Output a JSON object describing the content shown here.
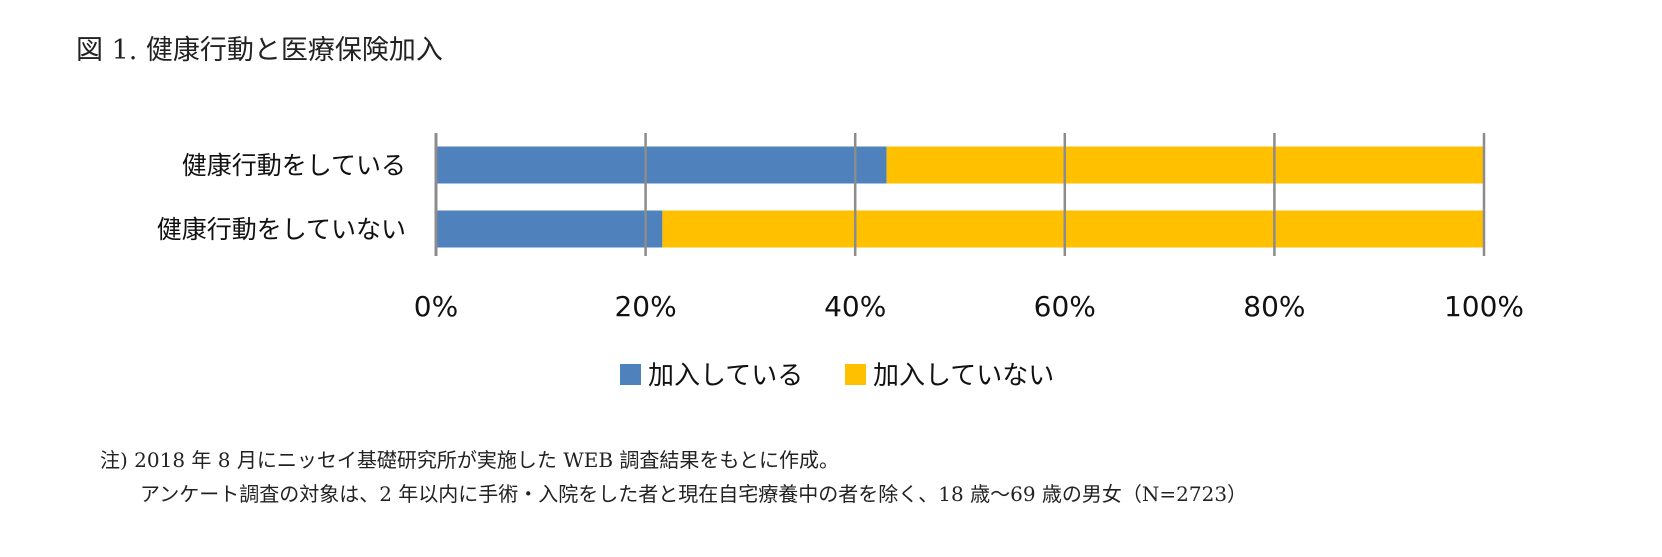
{
  "title": "図 1.  健康行動と医療保険加入",
  "chart_data": {
    "type": "bar",
    "orientation": "horizontal",
    "stacked": true,
    "percent": true,
    "categories": [
      "健康行動をしている",
      "健康行動をしていない"
    ],
    "series": [
      {
        "name": "加入している",
        "color": "#4f81bd",
        "values": [
          43,
          21.6
        ]
      },
      {
        "name": "加入していない",
        "color": "#ffc000",
        "values": [
          57,
          78.4
        ]
      }
    ],
    "xlim": [
      0,
      100
    ],
    "xticks": [
      "0%",
      "20%",
      "40%",
      "60%",
      "80%",
      "100%"
    ],
    "grid": true,
    "legend_position": "bottom"
  },
  "notes": {
    "line1": "注) 2018 年 8 月にニッセイ基礎研究所が実施した WEB 調査結果をもとに作成。",
    "line2": "アンケート調査の対象は、2 年以内に手術・入院をした者と現在自宅療養中の者を除く、18 歳～69 歳の男女（N=2723）"
  }
}
